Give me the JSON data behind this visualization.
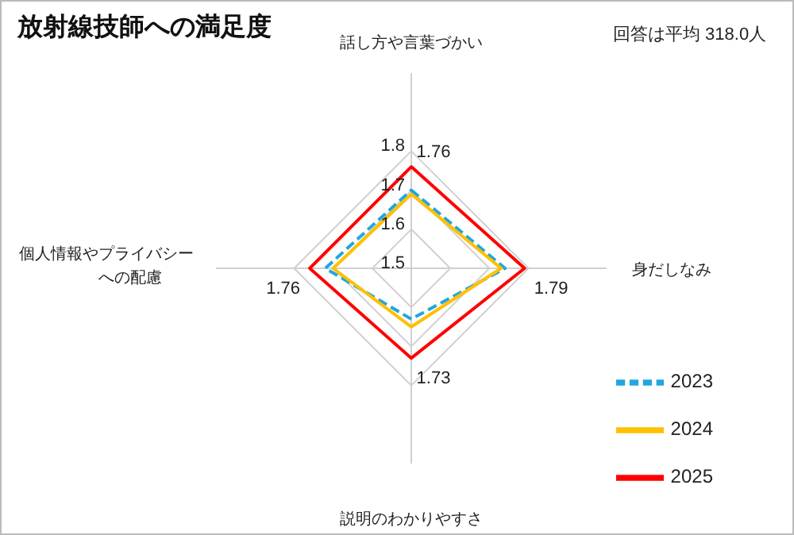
{
  "chart_data": {
    "type": "radar",
    "title": "放射線技師への満足度",
    "annotations": [
      "回答は平均 318.0人"
    ],
    "categories": [
      "話し方や言葉づかい",
      "身だしなみ",
      "説明のわかりやすさ",
      "個人情報やプライバシーへの配慮"
    ],
    "ylim": [
      1.5,
      1.8
    ],
    "yticks": [
      1.5,
      1.6,
      1.7,
      1.8
    ],
    "grid": true,
    "legend": "bottom right",
    "marker": "none",
    "series": [
      {
        "name": "2023",
        "color": "#1fa7e0",
        "values": [
          1.7,
          1.74,
          1.63,
          1.72
        ],
        "line_style": "dashed"
      },
      {
        "name": "2024",
        "color": "#ffc000",
        "values": [
          1.69,
          1.73,
          1.65,
          1.7
        ],
        "line_style": "solid"
      },
      {
        "name": "2025",
        "color": "#ff0000",
        "values": [
          1.76,
          1.79,
          1.73,
          1.76
        ],
        "line_style": "solid",
        "value_labels": [
          "1.76",
          "1.79",
          "1.73",
          "1.76"
        ]
      }
    ]
  }
}
